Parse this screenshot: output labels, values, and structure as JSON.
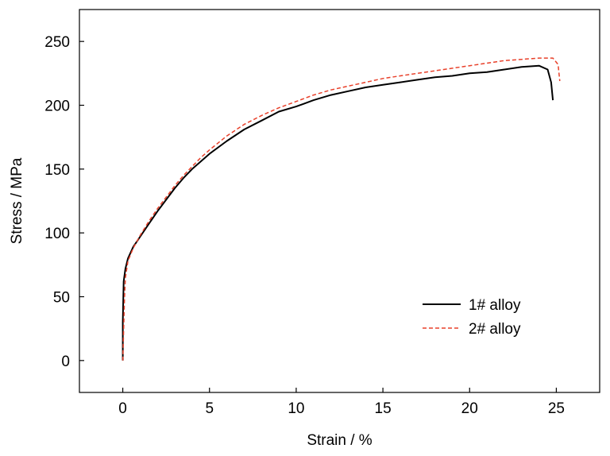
{
  "chart_data": {
    "type": "line",
    "xlabel": "Strain / %",
    "ylabel": "Stress / MPa",
    "xlim": [
      -2.5,
      27.5
    ],
    "ylim": [
      -25,
      275
    ],
    "xticks": [
      0,
      5,
      10,
      15,
      20,
      25
    ],
    "yticks": [
      0,
      50,
      100,
      150,
      200,
      250
    ],
    "xtick_labels": [
      "0",
      "5",
      "10",
      "15",
      "20",
      "25"
    ],
    "ytick_labels": [
      "0",
      "50",
      "100",
      "150",
      "200",
      "250"
    ],
    "grid": false,
    "legend_position": "lower-right",
    "series": [
      {
        "name": "1# alloy",
        "color": "#000000",
        "dash": "solid",
        "x": [
          0.0,
          0.0,
          0.05,
          0.15,
          0.3,
          0.6,
          1.0,
          1.5,
          2.0,
          2.5,
          3.0,
          3.5,
          4.0,
          4.5,
          5.0,
          6.0,
          7.0,
          8.0,
          9.0,
          10.0,
          11.0,
          12.0,
          13.0,
          14.0,
          15.0,
          16.0,
          17.0,
          18.0,
          19.0,
          20.0,
          21.0,
          22.0,
          23.0,
          24.0,
          24.5,
          24.7,
          24.8
        ],
        "y": [
          0,
          30,
          62,
          72,
          80,
          89,
          97,
          107,
          117,
          126,
          135,
          143,
          150,
          156,
          162,
          172,
          181,
          188,
          195,
          199,
          204,
          208,
          211,
          214,
          216,
          218,
          220,
          222,
          223,
          225,
          226,
          228,
          230,
          231,
          228,
          218,
          204
        ]
      },
      {
        "name": "2# alloy",
        "color": "#e8402a",
        "dash": "dashed",
        "x": [
          0.0,
          0.05,
          0.1,
          0.15,
          0.3,
          0.6,
          1.0,
          1.5,
          2.0,
          2.5,
          3.0,
          3.5,
          4.0,
          4.5,
          5.0,
          6.0,
          7.0,
          8.0,
          9.0,
          10.0,
          11.0,
          12.0,
          13.0,
          14.0,
          15.0,
          16.0,
          17.0,
          18.0,
          19.0,
          20.0,
          21.0,
          22.0,
          23.0,
          24.0,
          24.8,
          25.1,
          25.2
        ],
        "y": [
          0,
          25,
          50,
          65,
          78,
          88,
          98,
          109,
          119,
          128,
          137,
          145,
          152,
          159,
          165,
          176,
          185,
          192,
          198,
          203,
          208,
          212,
          215,
          218,
          221,
          223,
          225,
          227,
          229,
          231,
          233,
          235,
          236,
          237,
          237,
          232,
          219
        ]
      }
    ]
  }
}
